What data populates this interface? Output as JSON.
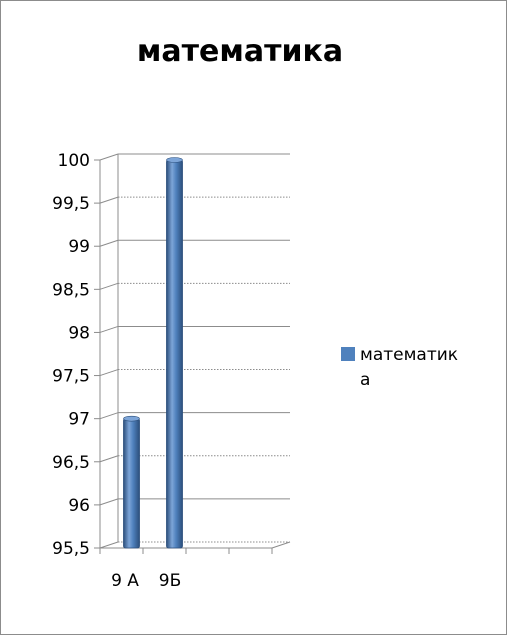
{
  "chart_data": {
    "type": "bar",
    "title": "математика",
    "categories": [
      "9 А",
      "9Б"
    ],
    "series": [
      {
        "name": "математика",
        "values": [
          97,
          100
        ]
      }
    ],
    "ylim": [
      95.5,
      100
    ],
    "yticks": [
      "100",
      "99,5",
      "99",
      "98,5",
      "98",
      "97,5",
      "97",
      "96,5",
      "96",
      "95,5"
    ],
    "ytick_values": [
      100,
      99.5,
      99,
      98.5,
      98,
      97.5,
      97,
      96.5,
      96,
      95.5
    ],
    "grid": true,
    "legend_position": "right",
    "colors": {
      "bar": "#4f81bd",
      "bar_dark": "#2c4f7c",
      "bar_light": "#7da5d8",
      "grid": "#8c8c8c"
    }
  },
  "legend": {
    "line1": "математик",
    "line2": "а"
  }
}
